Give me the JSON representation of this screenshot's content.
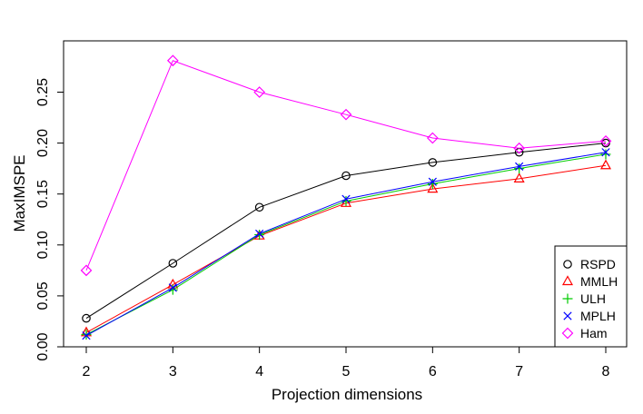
{
  "chart_data": {
    "type": "line",
    "title": "",
    "xlabel": "Projection dimensions",
    "ylabel": "MaxIMSPE",
    "x": [
      2,
      3,
      4,
      5,
      6,
      7,
      8
    ],
    "xlim": [
      2,
      8
    ],
    "ylim": [
      0,
      0.28
    ],
    "x_ticks": [
      "2",
      "3",
      "4",
      "5",
      "6",
      "7",
      "8"
    ],
    "y_ticks": [
      {
        "value": 0.0,
        "label": "0.00"
      },
      {
        "value": 0.05,
        "label": "0.05"
      },
      {
        "value": 0.1,
        "label": "0.10"
      },
      {
        "value": 0.15,
        "label": "0.15"
      },
      {
        "value": 0.2,
        "label": "0.20"
      },
      {
        "value": 0.25,
        "label": "0.25"
      }
    ],
    "grid": false,
    "legend_position": "bottom-right",
    "series": [
      {
        "name": "RSPD",
        "color": "#000000",
        "marker": "circle",
        "values": [
          0.028,
          0.082,
          0.137,
          0.168,
          0.181,
          0.191,
          0.2
        ]
      },
      {
        "name": "MMLH",
        "color": "#ff0000",
        "marker": "triangle",
        "values": [
          0.014,
          0.061,
          0.109,
          0.141,
          0.155,
          0.165,
          0.178
        ]
      },
      {
        "name": "ULH",
        "color": "#00cc00",
        "marker": "plus",
        "values": [
          0.012,
          0.056,
          0.11,
          0.143,
          0.16,
          0.175,
          0.189
        ]
      },
      {
        "name": "MPLH",
        "color": "#0000ff",
        "marker": "cross",
        "values": [
          0.011,
          0.058,
          0.111,
          0.145,
          0.162,
          0.177,
          0.191
        ]
      },
      {
        "name": "Ham",
        "color": "#ff00ff",
        "marker": "diamond",
        "values": [
          0.075,
          0.281,
          0.25,
          0.228,
          0.205,
          0.195,
          0.202
        ]
      }
    ]
  }
}
